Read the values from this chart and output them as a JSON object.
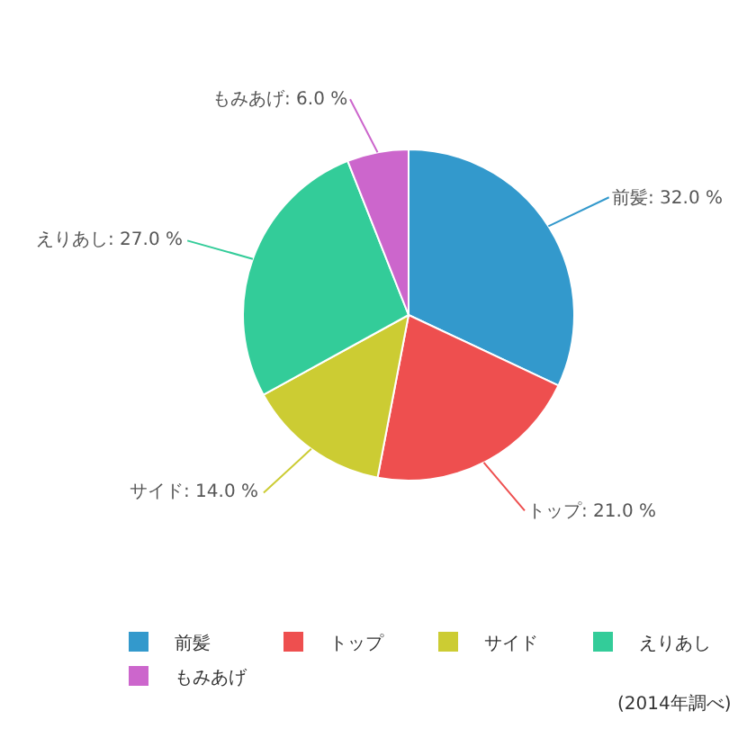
{
  "chart_data": {
    "type": "pie",
    "categories": [
      "前髪",
      "トップ",
      "サイド",
      "えりあし",
      "もみあげ"
    ],
    "values": [
      32.0,
      21.0,
      14.0,
      27.0,
      6.0
    ],
    "colors": [
      "#3399cc",
      "#ee4f4f",
      "#cccc33",
      "#33cc99",
      "#cc66cc"
    ],
    "value_labels": [
      "前髪: 32.0 %",
      "トップ: 21.0 %",
      "サイド: 14.0 %",
      "えりあし: 27.0 %",
      "もみあげ: 6.0 %"
    ],
    "legend": "bottom",
    "annotations": [
      "(2014年調べ)"
    ]
  }
}
